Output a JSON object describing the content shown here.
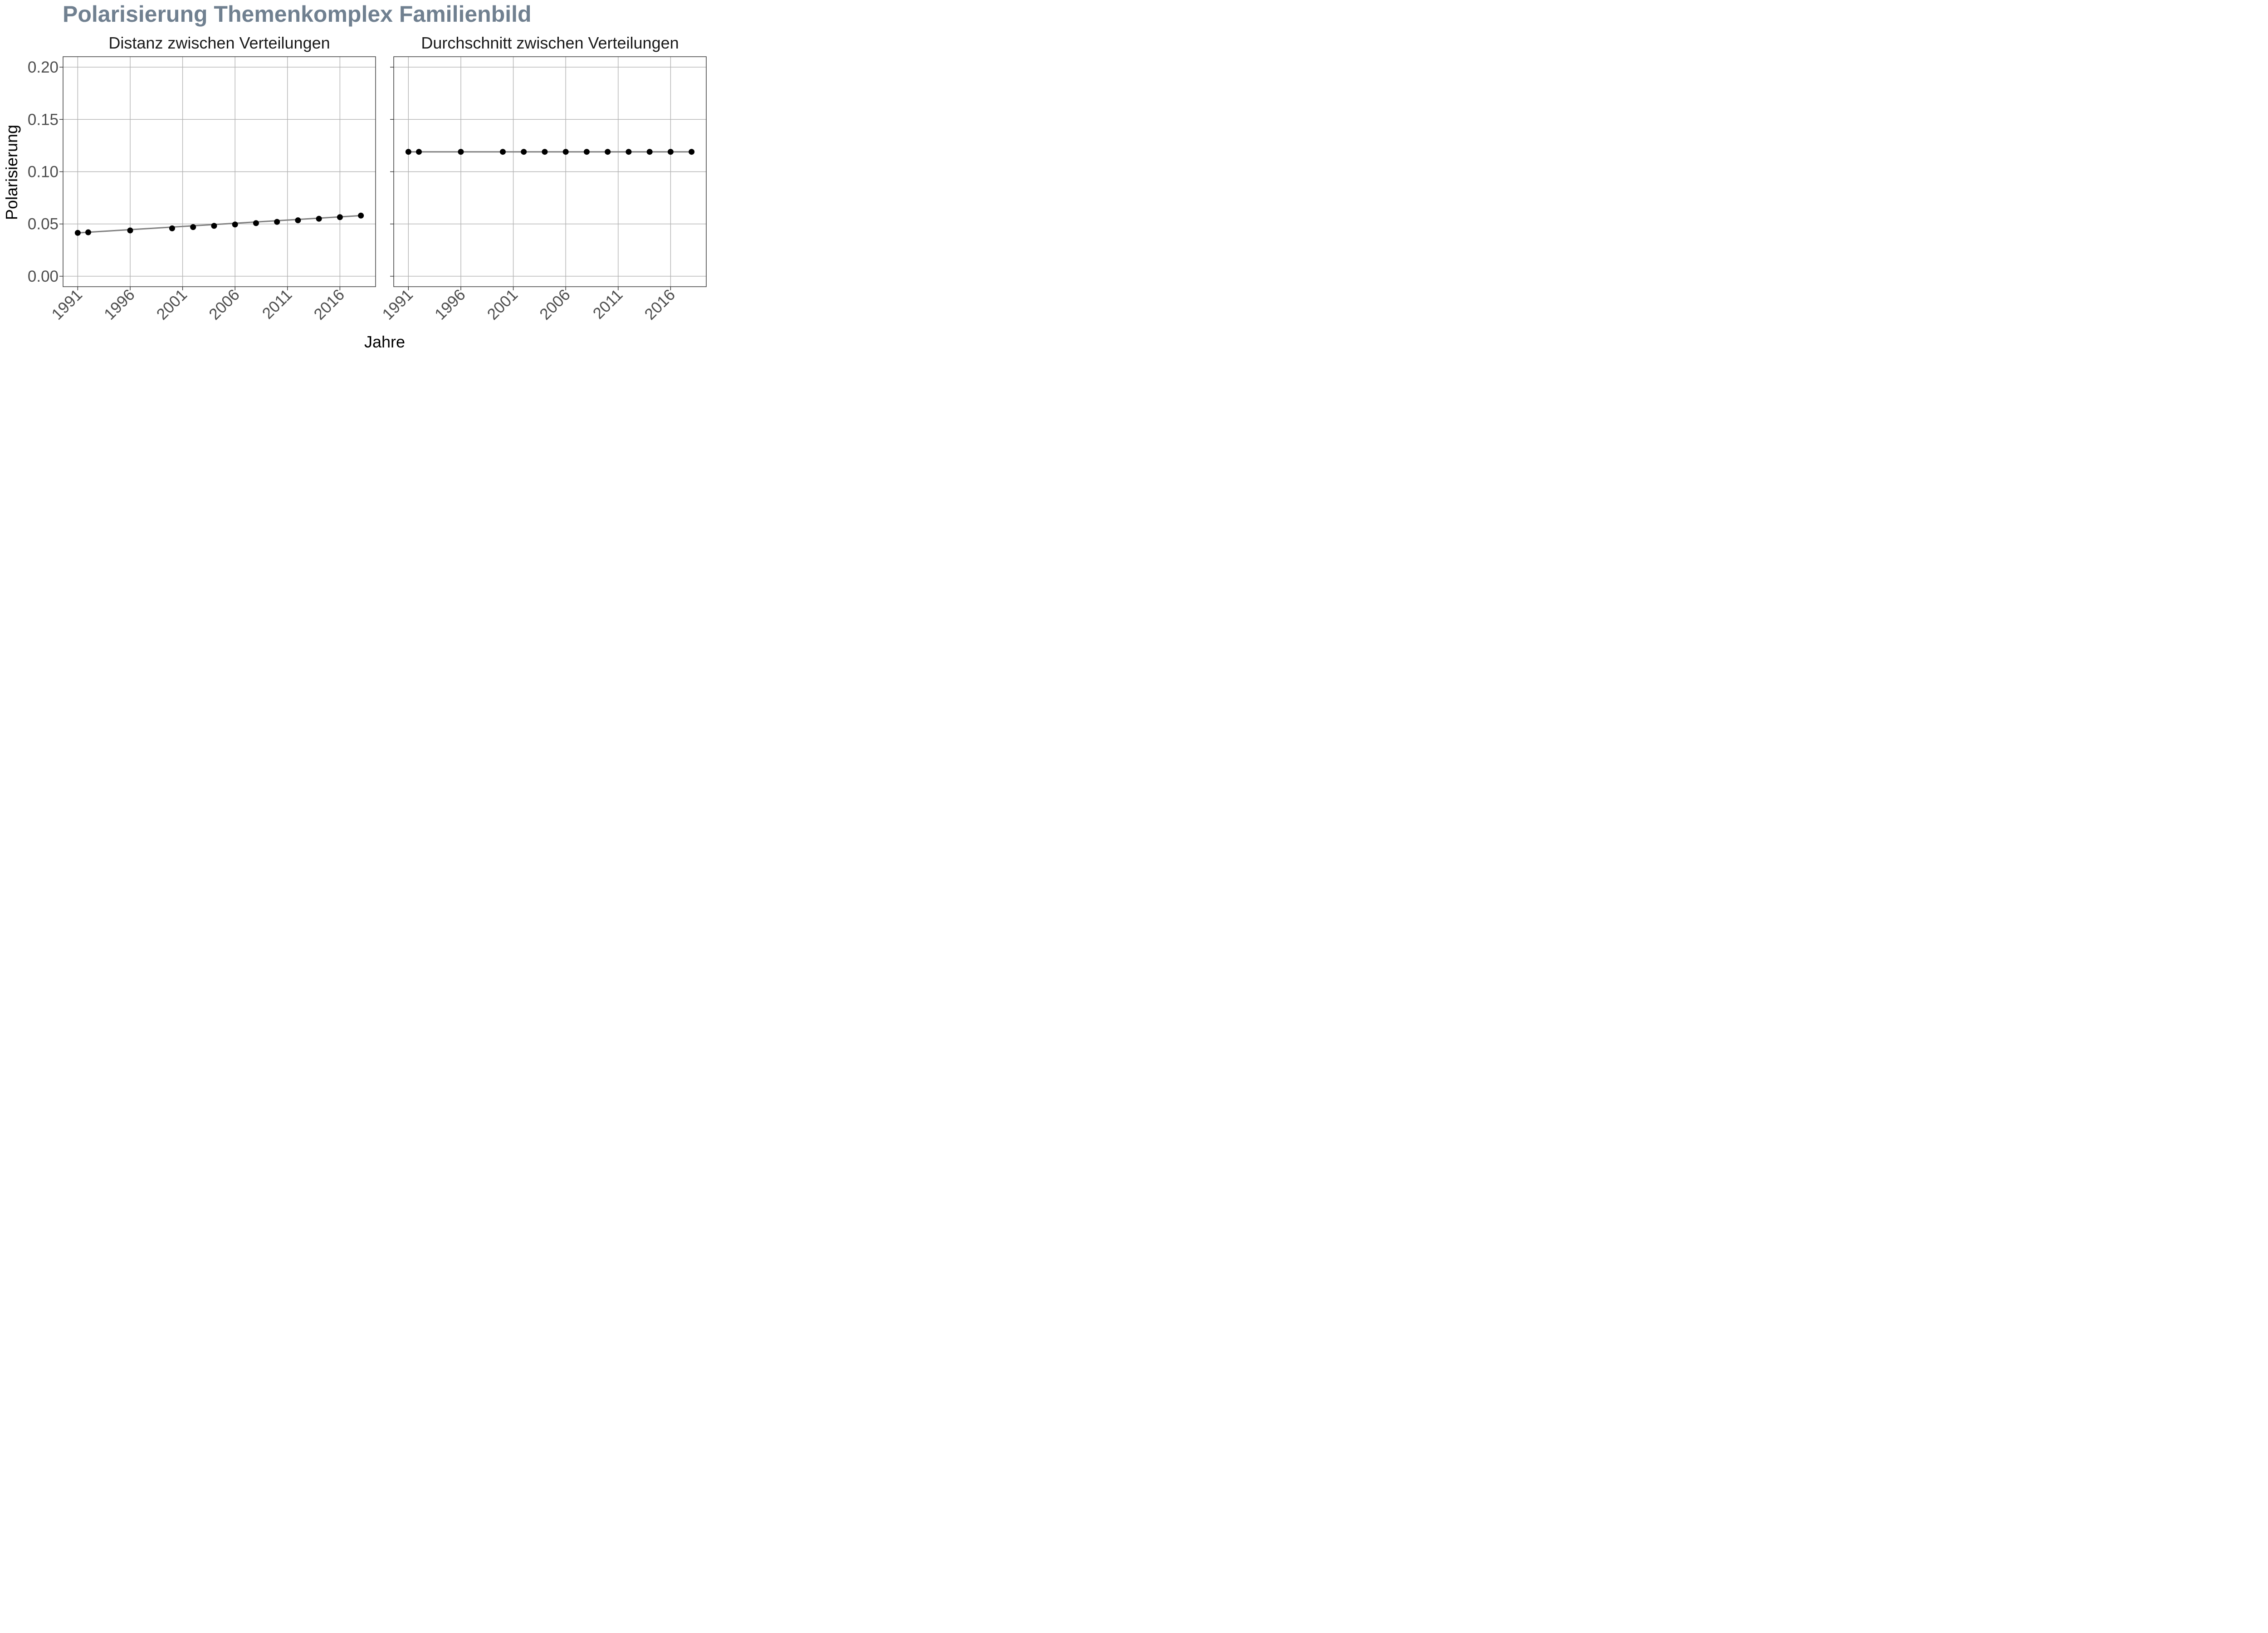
{
  "chart_data": {
    "type": "line",
    "title": "Polarisierung Themenkomplex Familienbild",
    "xlabel": "Jahre",
    "ylabel": "Polarisierung",
    "ylim": [
      -0.01,
      0.21
    ],
    "xlim": [
      1989.6,
      2019.4
    ],
    "y_ticks": [
      "0.00",
      "0.05",
      "0.10",
      "0.15",
      "0.20"
    ],
    "y_tick_values": [
      0.0,
      0.05,
      0.1,
      0.15,
      0.2
    ],
    "x_ticks": [
      "1991",
      "1996",
      "2001",
      "2006",
      "2011",
      "2016"
    ],
    "x_tick_values": [
      1991,
      1996,
      2001,
      2006,
      2011,
      2016
    ],
    "grid": true,
    "line_color": "#808080",
    "point_color": "#000000",
    "panels": [
      {
        "name": "Distanz zwischen Verteilungen",
        "x": [
          1991,
          1992,
          1996,
          2000,
          2002,
          2004,
          2006,
          2008,
          2010,
          2012,
          2014,
          2016,
          2018
        ],
        "y": [
          0.0415,
          0.042,
          0.0438,
          0.0458,
          0.047,
          0.0482,
          0.0495,
          0.0508,
          0.052,
          0.0535,
          0.055,
          0.0565,
          0.058
        ],
        "fit": [
          [
            1991,
            0.0415
          ],
          [
            2018,
            0.058
          ]
        ]
      },
      {
        "name": "Durchschnitt zwischen Verteilungen",
        "x": [
          1991,
          1992,
          1996,
          2000,
          2002,
          2004,
          2006,
          2008,
          2010,
          2012,
          2014,
          2016,
          2018
        ],
        "y": [
          0.119,
          0.119,
          0.119,
          0.119,
          0.119,
          0.119,
          0.119,
          0.119,
          0.119,
          0.119,
          0.119,
          0.119,
          0.119
        ],
        "fit": [
          [
            1991,
            0.119
          ],
          [
            2018,
            0.119
          ]
        ]
      }
    ]
  }
}
